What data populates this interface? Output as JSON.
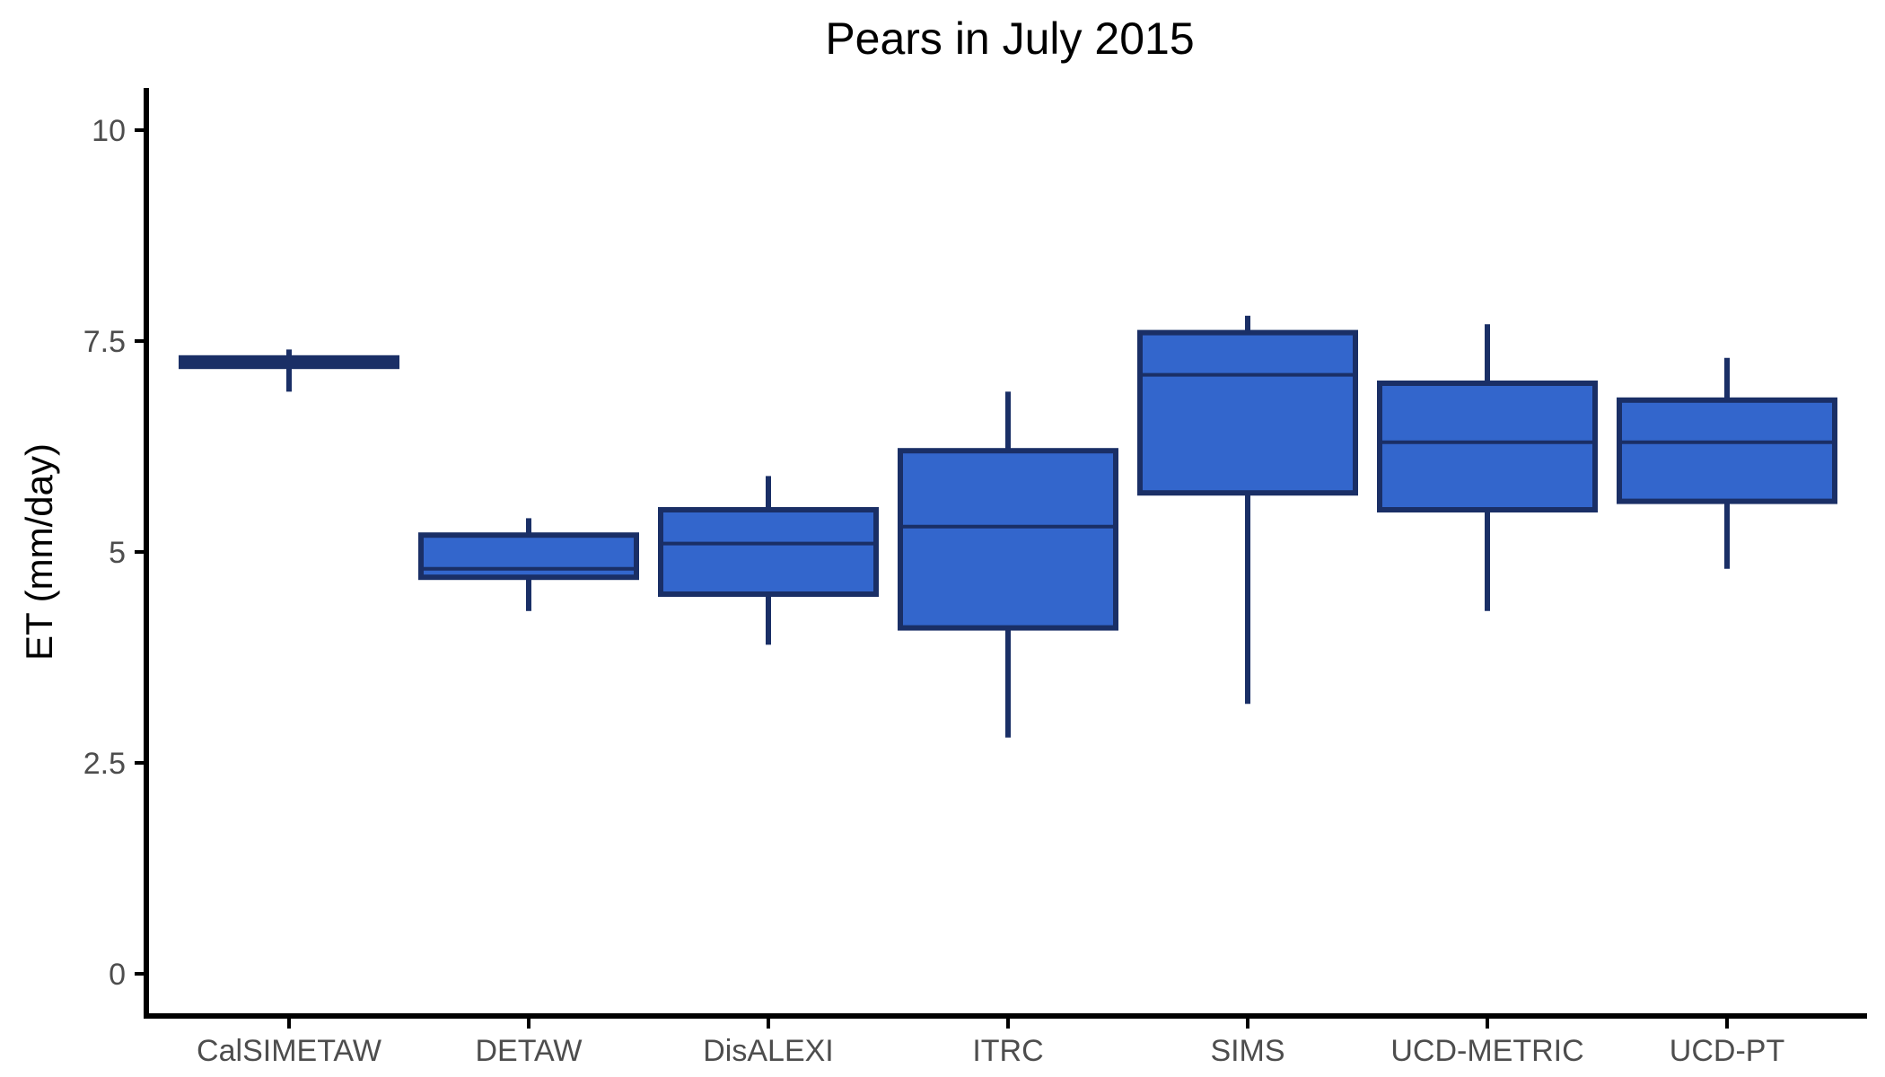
{
  "chart_data": {
    "type": "box",
    "title": "Pears in July 2015",
    "xlabel": "",
    "ylabel": "ET (mm/day)",
    "ylim": [
      -0.5,
      10.5
    ],
    "yticks": [
      0,
      2.5,
      5,
      7.5,
      10
    ],
    "ytick_labels": [
      "0",
      "2.5",
      "5",
      "7.5",
      "10"
    ],
    "categories": [
      "CalSIMETAW",
      "DETAW",
      "DisALEXI",
      "ITRC",
      "SIMS",
      "UCD-METRIC",
      "UCD-PT"
    ],
    "boxes": [
      {
        "min": 6.9,
        "q1": 7.2,
        "median": 7.25,
        "q3": 7.3,
        "max": 7.4
      },
      {
        "min": 4.3,
        "q1": 4.7,
        "median": 4.8,
        "q3": 5.2,
        "max": 5.4
      },
      {
        "min": 3.9,
        "q1": 4.5,
        "median": 5.1,
        "q3": 5.5,
        "max": 5.9
      },
      {
        "min": 2.8,
        "q1": 4.1,
        "median": 5.3,
        "q3": 6.2,
        "max": 6.9
      },
      {
        "min": 3.2,
        "q1": 5.7,
        "median": 7.1,
        "q3": 7.6,
        "max": 7.8
      },
      {
        "min": 4.3,
        "q1": 5.5,
        "median": 6.3,
        "q3": 7.0,
        "max": 7.7
      },
      {
        "min": 4.8,
        "q1": 5.6,
        "median": 6.3,
        "q3": 6.8,
        "max": 7.3
      }
    ],
    "fill_color": "#3366cc",
    "line_color": "#1a2f66",
    "grid": false,
    "legend": "none"
  }
}
